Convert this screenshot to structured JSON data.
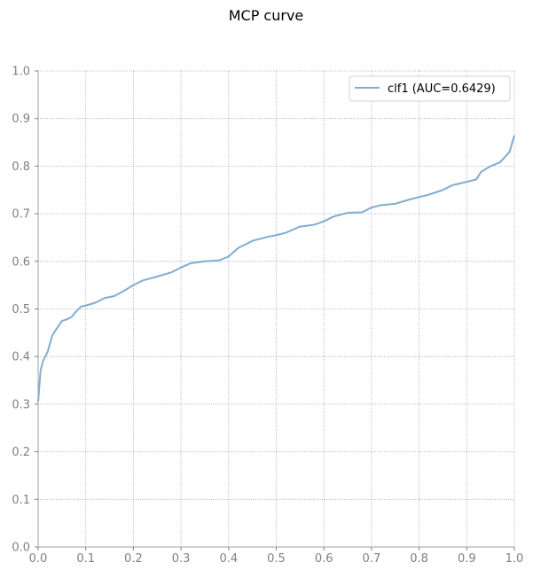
{
  "chart_data": {
    "type": "line",
    "title": "MCP curve",
    "xlabel": "",
    "ylabel": "",
    "xlim": [
      0.0,
      1.0
    ],
    "ylim": [
      0.0,
      1.0
    ],
    "xticks": [
      "0.0",
      "0.1",
      "0.2",
      "0.3",
      "0.4",
      "0.5",
      "0.6",
      "0.7",
      "0.8",
      "0.9",
      "1.0"
    ],
    "yticks": [
      "0.0",
      "0.1",
      "0.2",
      "0.3",
      "0.4",
      "0.5",
      "0.6",
      "0.7",
      "0.8",
      "0.9",
      "1.0"
    ],
    "grid": true,
    "legend_position": "top-right",
    "series": [
      {
        "name": "clf1 (AUC=0.6429)",
        "color": "#7fadd3",
        "x": [
          0.0,
          0.005,
          0.01,
          0.02,
          0.03,
          0.04,
          0.05,
          0.06,
          0.07,
          0.08,
          0.09,
          0.1,
          0.12,
          0.14,
          0.16,
          0.18,
          0.2,
          0.22,
          0.25,
          0.28,
          0.3,
          0.32,
          0.35,
          0.38,
          0.4,
          0.42,
          0.45,
          0.48,
          0.5,
          0.52,
          0.55,
          0.58,
          0.6,
          0.62,
          0.65,
          0.68,
          0.7,
          0.72,
          0.75,
          0.78,
          0.8,
          0.82,
          0.85,
          0.87,
          0.9,
          0.92,
          0.93,
          0.95,
          0.97,
          0.99,
          1.0
        ],
        "y": [
          0.305,
          0.37,
          0.39,
          0.41,
          0.445,
          0.46,
          0.475,
          0.478,
          0.483,
          0.495,
          0.505,
          0.507,
          0.513,
          0.523,
          0.527,
          0.538,
          0.55,
          0.56,
          0.568,
          0.577,
          0.587,
          0.596,
          0.6,
          0.602,
          0.61,
          0.628,
          0.643,
          0.651,
          0.655,
          0.66,
          0.673,
          0.677,
          0.684,
          0.694,
          0.702,
          0.703,
          0.713,
          0.718,
          0.721,
          0.73,
          0.735,
          0.74,
          0.75,
          0.76,
          0.767,
          0.772,
          0.788,
          0.8,
          0.808,
          0.83,
          0.865
        ]
      }
    ]
  }
}
